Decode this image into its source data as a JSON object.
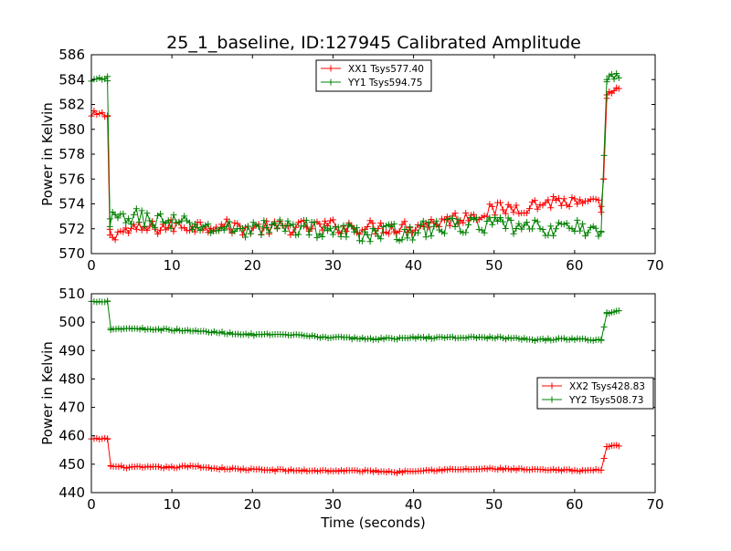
{
  "title": "25_1_baseline, ID:127945 Calibrated Amplitude",
  "chart_data": [
    {
      "type": "line",
      "ylabel": "Power in Kelvin",
      "xlabel": "",
      "xlim": [
        0,
        70
      ],
      "ylim": [
        570,
        586
      ],
      "xticks": [
        "0",
        "10",
        "20",
        "30",
        "40",
        "50",
        "60",
        "70"
      ],
      "yticks": [
        "570",
        "572",
        "574",
        "576",
        "578",
        "580",
        "582",
        "584",
        "586"
      ],
      "legend_position": "top-center",
      "grid": false,
      "series": [
        {
          "name": "XX1 Tsys577.40",
          "color": "#ff0000",
          "segments": [
            {
              "x": [
                0,
                0.3,
                2.0
              ],
              "y": [
                581.0,
                581.2,
                581.1
              ],
              "noise": 0.3
            },
            {
              "x": [
                2.0,
                2.3
              ],
              "y": [
                581.1,
                571.5
              ],
              "noise": 0
            },
            {
              "x": [
                2.3,
                5,
                10,
                15,
                20,
                25,
                30,
                35,
                40,
                45,
                50,
                55,
                58,
                60,
                63.3
              ],
              "y": [
                571.6,
                571.9,
                572.2,
                572.3,
                572.0,
                572.1,
                572.2,
                572.1,
                572.2,
                572.8,
                573.5,
                573.9,
                574.3,
                574.0,
                573.8
              ],
              "noise": 0.6
            },
            {
              "x": [
                63.3,
                63.6
              ],
              "y": [
                573.8,
                576.0
              ],
              "noise": 0
            },
            {
              "x": [
                63.6,
                64.0
              ],
              "y": [
                576.0,
                582.5
              ],
              "noise": 0
            },
            {
              "x": [
                64.0,
                65.5
              ],
              "y": [
                582.8,
                583.3
              ],
              "noise": 0.2
            }
          ]
        },
        {
          "name": "YY1 Tsys594.75",
          "color": "#008000",
          "segments": [
            {
              "x": [
                0,
                2.0
              ],
              "y": [
                583.8,
                584.1
              ],
              "noise": 0.3
            },
            {
              "x": [
                2.0,
                2.3
              ],
              "y": [
                583.9,
                572.8
              ],
              "noise": 0
            },
            {
              "x": [
                2.3,
                5,
                10,
                15,
                20,
                25,
                30,
                35,
                40,
                45,
                50,
                55,
                60,
                63.3
              ],
              "y": [
                572.6,
                573.0,
                572.5,
                572.0,
                572.0,
                572.2,
                571.8,
                571.6,
                571.8,
                572.3,
                572.3,
                572.0,
                572.1,
                571.8
              ],
              "noise": 0.7
            },
            {
              "x": [
                63.3,
                64.0
              ],
              "y": [
                571.8,
                584.0
              ],
              "noise": 0
            },
            {
              "x": [
                64.0,
                65.5
              ],
              "y": [
                584.1,
                584.3
              ],
              "noise": 0.3
            }
          ]
        }
      ]
    },
    {
      "type": "line",
      "ylabel": "Power in Kelvin",
      "xlabel": "Time (seconds)",
      "xlim": [
        0,
        70
      ],
      "ylim": [
        440,
        510
      ],
      "xticks": [
        "0",
        "10",
        "20",
        "30",
        "40",
        "50",
        "60",
        "70"
      ],
      "yticks": [
        "440",
        "450",
        "460",
        "470",
        "480",
        "490",
        "500",
        "510"
      ],
      "legend_position": "center-right",
      "grid": false,
      "series": [
        {
          "name": "XX2 Tsys428.83",
          "color": "#ff0000",
          "segments": [
            {
              "x": [
                0,
                2.0
              ],
              "y": [
                458.8,
                459.0
              ],
              "noise": 0.3
            },
            {
              "x": [
                2.0,
                2.4
              ],
              "y": [
                459.0,
                449.5
              ],
              "noise": 0
            },
            {
              "x": [
                2.4,
                5,
                10,
                13,
                15,
                20,
                25,
                30,
                35,
                38,
                40,
                45,
                50,
                55,
                60,
                63.3
              ],
              "y": [
                449.2,
                448.9,
                448.9,
                449.3,
                448.6,
                448.1,
                447.8,
                447.7,
                447.6,
                447.2,
                447.8,
                448.1,
                448.4,
                448.0,
                447.8,
                447.9
              ],
              "noise": 0.35
            },
            {
              "x": [
                63.3,
                64.0
              ],
              "y": [
                447.9,
                456.2
              ],
              "noise": 0
            },
            {
              "x": [
                64.0,
                65.5
              ],
              "y": [
                456.3,
                456.6
              ],
              "noise": 0.2
            }
          ]
        },
        {
          "name": "YY2 Tsys508.73",
          "color": "#008000",
          "segments": [
            {
              "x": [
                0,
                2.0
              ],
              "y": [
                507.2,
                507.4
              ],
              "noise": 0.3
            },
            {
              "x": [
                2.0,
                2.4
              ],
              "y": [
                507.3,
                497.8
              ],
              "noise": 0
            },
            {
              "x": [
                2.4,
                5,
                10,
                15,
                20,
                25,
                30,
                35,
                40,
                45,
                50,
                55,
                60,
                63.3
              ],
              "y": [
                497.6,
                497.8,
                497.3,
                496.5,
                495.6,
                495.4,
                494.6,
                494.1,
                494.5,
                494.6,
                494.6,
                493.8,
                494.1,
                493.6
              ],
              "noise": 0.35
            },
            {
              "x": [
                63.3,
                64.0
              ],
              "y": [
                493.6,
                503.0
              ],
              "noise": 0
            },
            {
              "x": [
                64.0,
                65.5
              ],
              "y": [
                503.2,
                503.8
              ],
              "noise": 0.3
            }
          ]
        }
      ]
    }
  ]
}
